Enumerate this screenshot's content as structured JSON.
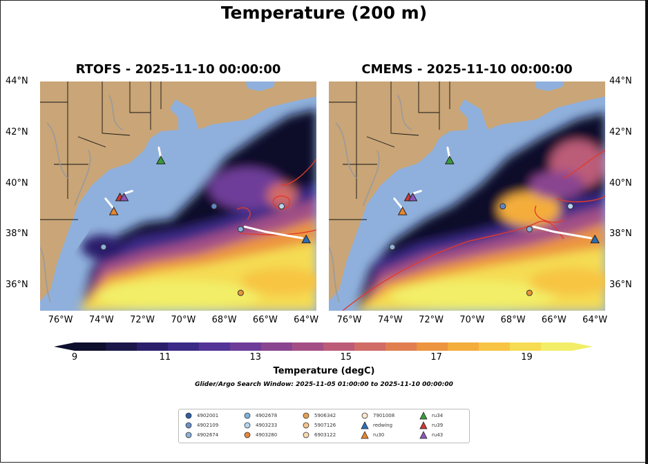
{
  "figure": {
    "title": "Temperature (200 m)",
    "search_window": "Glider/Argo Search Window: 2025-11-05 01:00:00 to 2025-11-10 00:00:00"
  },
  "chart_data": {
    "type": "heatmap",
    "variable": "Temperature",
    "depth_m": 200,
    "colorbar": {
      "label": "Temperature (degC)",
      "ticks": [
        9,
        11,
        13,
        15,
        17,
        19
      ],
      "range": [
        9,
        20
      ],
      "colors": [
        "#0d0f2c",
        "#1b1748",
        "#2b1f6b",
        "#3b2a86",
        "#533497",
        "#6e3c99",
        "#8a4590",
        "#a34f86",
        "#bb5b78",
        "#d06b66",
        "#e07e52",
        "#ec943f",
        "#f4ad3a",
        "#f7c543",
        "#f5dc52",
        "#f2ee67"
      ]
    },
    "x_ticks": [
      "76°W",
      "74°W",
      "72°W",
      "70°W",
      "68°W",
      "66°W",
      "64°W"
    ],
    "y_ticks": [
      "44°N",
      "42°N",
      "40°N",
      "38°N",
      "36°N"
    ],
    "lon_range": [
      -77,
      -63.5
    ],
    "lat_range": [
      35,
      44
    ],
    "panels": [
      {
        "title": "RTOFS - 2025-11-10 00:00:00",
        "model": "RTOFS"
      },
      {
        "title": "CMEMS - 2025-11-10 00:00:00",
        "model": "CMEMS"
      }
    ],
    "platforms": [
      {
        "id": "4902001",
        "kind": "argo",
        "color": "#2d5ea8",
        "lon": -67.2,
        "lat": 35.7,
        "fill": "#e8953a"
      },
      {
        "id": "4902109",
        "kind": "argo",
        "color": "#6c8fc8",
        "lon": -68.5,
        "lat": 39.1,
        "fill": "#5f86c2"
      },
      {
        "id": "4902674",
        "kind": "argo",
        "color": "#8fb0d8",
        "lon": -73.9,
        "lat": 37.5,
        "fill": "#8fb0d8"
      },
      {
        "id": "4902678",
        "kind": "argo",
        "color": "#7fb1e0",
        "lon": -67.2,
        "lat": 38.2,
        "fill": "#86b3e0"
      },
      {
        "id": "4903233",
        "kind": "argo",
        "color": "#b7d5ef",
        "lon": -65.2,
        "lat": 39.1,
        "fill": "#b7d5ef"
      },
      {
        "id": "4903280",
        "kind": "argo",
        "color": "#e8863a",
        "lon": null,
        "lat": null,
        "fill": null
      },
      {
        "id": "5906342",
        "kind": "argo",
        "color": "#e9a050",
        "lon": null,
        "lat": null,
        "fill": null
      },
      {
        "id": "5907126",
        "kind": "argo",
        "color": "#f3c48a",
        "lon": null,
        "lat": null,
        "fill": null
      },
      {
        "id": "6903122",
        "kind": "argo",
        "color": "#f7d9b2",
        "lon": null,
        "lat": null,
        "fill": null
      },
      {
        "id": "7901008",
        "kind": "argo",
        "color": "#fbe8cf",
        "lon": null,
        "lat": null,
        "fill": null
      },
      {
        "id": "redwing",
        "kind": "glider",
        "color": "#2e6db4",
        "lon": -64.0,
        "lat": 37.8
      },
      {
        "id": "ru30",
        "kind": "glider",
        "color": "#e8862e",
        "lon": -73.4,
        "lat": 38.9
      },
      {
        "id": "ru34",
        "kind": "glider",
        "color": "#3a9a3a",
        "lon": -71.1,
        "lat": 40.9
      },
      {
        "id": "ru39",
        "kind": "glider",
        "color": "#c63a3a",
        "lon": -73.1,
        "lat": 39.45
      },
      {
        "id": "ru43",
        "kind": "glider",
        "color": "#8a55b8",
        "lon": -72.9,
        "lat": 39.45
      }
    ],
    "glider_tracks": [
      {
        "name": "redwing-track",
        "points": [
          [
            -67.0,
            38.3
          ],
          [
            -66.0,
            38.1
          ],
          [
            -64.2,
            37.85
          ]
        ]
      },
      {
        "name": "ru30-track",
        "points": [
          [
            -73.8,
            39.4
          ],
          [
            -73.4,
            39.0
          ]
        ]
      },
      {
        "name": "ru39-track",
        "points": [
          [
            -72.9,
            39.6
          ],
          [
            -72.5,
            39.7
          ]
        ]
      },
      {
        "name": "ru34-track",
        "points": [
          [
            -71.2,
            41.4
          ],
          [
            -71.1,
            41.0
          ]
        ]
      }
    ]
  },
  "legend": {
    "columns": [
      [
        "4902001",
        "4902109",
        "4902674"
      ],
      [
        "4902678",
        "4903233",
        "4903280"
      ],
      [
        "5906342",
        "5907126",
        "6903122"
      ],
      [
        "7901008",
        "redwing",
        "ru30"
      ],
      [
        "ru34",
        "ru39",
        "ru43"
      ]
    ]
  }
}
